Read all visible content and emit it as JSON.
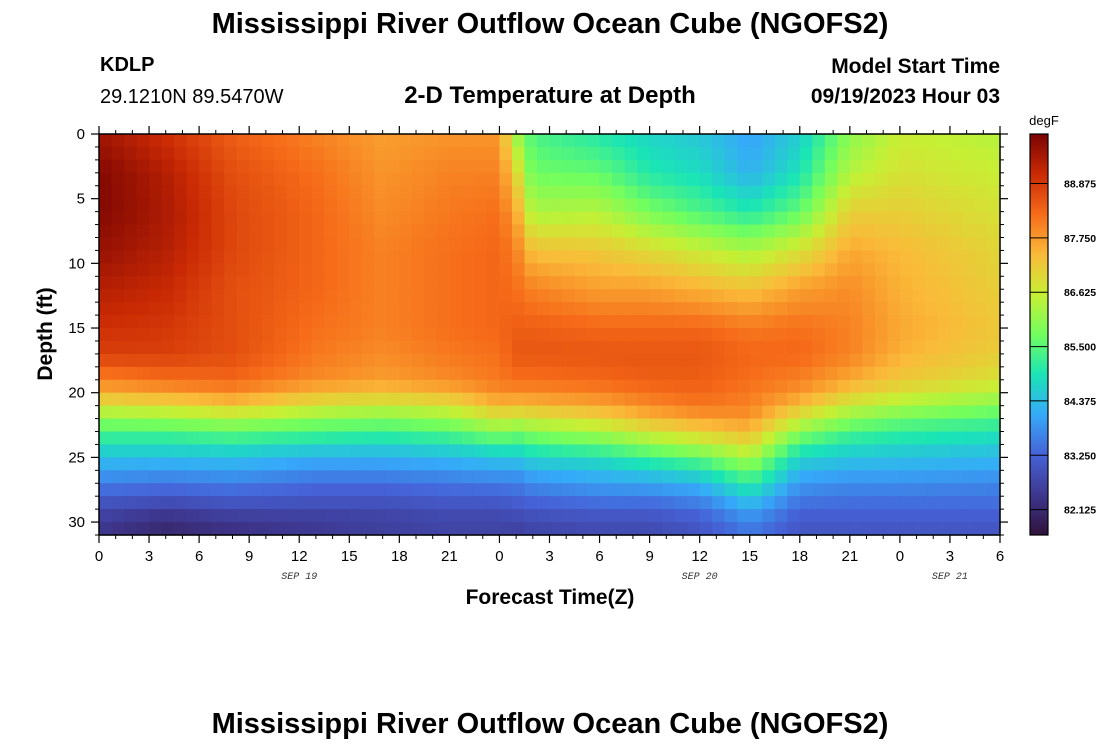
{
  "header": {
    "title": "Mississippi River Outflow Ocean Cube (NGOFS2)",
    "station": "KDLP",
    "coordinates": "29.1210N  89.5470W",
    "subtitle": "2-D Temperature at Depth",
    "start_label": "Model Start Time",
    "start_value": "09/19/2023 Hour 03"
  },
  "footer": {
    "title": "Mississippi River Outflow Ocean Cube (NGOFS2)"
  },
  "chart_data": {
    "type": "heatmap",
    "title": "2-D Temperature at Depth",
    "xlabel": "Forecast Time(Z)",
    "ylabel": "Depth (ft)",
    "x_range_hours": [
      0,
      54
    ],
    "y_range_ft": [
      0,
      31
    ],
    "x_ticks": [
      {
        "hour": 0,
        "label": "0"
      },
      {
        "hour": 3,
        "label": "3"
      },
      {
        "hour": 6,
        "label": "6"
      },
      {
        "hour": 9,
        "label": "9"
      },
      {
        "hour": 12,
        "label": "12"
      },
      {
        "hour": 15,
        "label": "15"
      },
      {
        "hour": 18,
        "label": "18"
      },
      {
        "hour": 21,
        "label": "21"
      },
      {
        "hour": 24,
        "label": "0"
      },
      {
        "hour": 27,
        "label": "3"
      },
      {
        "hour": 30,
        "label": "6"
      },
      {
        "hour": 33,
        "label": "9"
      },
      {
        "hour": 36,
        "label": "12"
      },
      {
        "hour": 39,
        "label": "15"
      },
      {
        "hour": 42,
        "label": "18"
      },
      {
        "hour": 45,
        "label": "21"
      },
      {
        "hour": 48,
        "label": "0"
      },
      {
        "hour": 51,
        "label": "3"
      },
      {
        "hour": 54,
        "label": "6"
      }
    ],
    "date_labels": [
      {
        "hour": 12,
        "label": "SEP 19"
      },
      {
        "hour": 36,
        "label": "SEP 20"
      },
      {
        "hour": 51,
        "label": "SEP 21"
      }
    ],
    "y_ticks": [
      0,
      5,
      10,
      15,
      20,
      25,
      30
    ],
    "colorbar": {
      "unit": "degF",
      "range": [
        81.6,
        89.9
      ],
      "ticks": [
        "88.875",
        "87.750",
        "86.625",
        "85.500",
        "84.375",
        "83.250",
        "82.125"
      ],
      "colors": [
        "#30123b",
        "#3e378f",
        "#4662d7",
        "#36a9f9",
        "#1ae4b6",
        "#72fe5e",
        "#c7ef34",
        "#faba39",
        "#f66b19",
        "#ca2a04",
        "#7a0403"
      ]
    },
    "temperature_profiles": {
      "depth_ft": [
        0,
        3,
        6,
        9,
        12,
        15,
        17,
        19,
        20,
        21,
        22,
        23,
        24,
        25,
        26,
        27,
        28,
        29,
        30,
        31
      ],
      "series": [
        {
          "hour": 0,
          "values": [
            89.5,
            89.8,
            89.8,
            89.6,
            89.3,
            89.0,
            88.8,
            88.0,
            87.5,
            86.8,
            86.0,
            85.4,
            84.9,
            84.4,
            84.0,
            83.6,
            83.2,
            82.8,
            82.5,
            82.4
          ]
        },
        {
          "hour": 4,
          "values": [
            89.0,
            89.3,
            89.4,
            89.3,
            89.1,
            88.9,
            88.8,
            88.2,
            87.7,
            86.9,
            86.1,
            85.4,
            84.9,
            84.4,
            83.9,
            83.5,
            83.1,
            82.6,
            82.2,
            82.1
          ]
        },
        {
          "hour": 8,
          "values": [
            88.4,
            88.6,
            88.7,
            88.7,
            88.6,
            88.6,
            88.6,
            88.3,
            87.9,
            87.2,
            86.3,
            85.6,
            85.0,
            84.4,
            84.0,
            83.6,
            83.2,
            82.8,
            82.4,
            82.3
          ]
        },
        {
          "hour": 13,
          "values": [
            88.0,
            88.2,
            88.3,
            88.3,
            88.3,
            88.2,
            88.1,
            87.9,
            87.4,
            86.8,
            86.0,
            85.4,
            84.8,
            84.2,
            83.8,
            83.4,
            83.1,
            82.8,
            82.5,
            82.5
          ]
        },
        {
          "hour": 17,
          "values": [
            87.7,
            87.8,
            87.9,
            88.0,
            88.0,
            88.0,
            87.9,
            87.7,
            87.3,
            86.6,
            85.9,
            85.3,
            84.7,
            84.2,
            83.8,
            83.4,
            83.1,
            82.8,
            82.6,
            82.6
          ]
        },
        {
          "hour": 21,
          "values": [
            87.8,
            88.0,
            88.1,
            88.2,
            88.2,
            88.2,
            88.1,
            87.9,
            87.5,
            86.8,
            86.1,
            85.5,
            84.9,
            84.3,
            83.9,
            83.5,
            83.2,
            82.9,
            82.7,
            82.7
          ]
        },
        {
          "hour": 24,
          "values": [
            87.8,
            88.0,
            88.2,
            88.3,
            88.3,
            88.3,
            88.2,
            88.1,
            87.9,
            87.4,
            86.7,
            86.0,
            85.2,
            84.5,
            84.0,
            83.6,
            83.2,
            82.9,
            82.7,
            82.7
          ]
        },
        {
          "hour": 25,
          "values": [
            86.2,
            87.0,
            87.6,
            88.0,
            88.2,
            88.4,
            88.5,
            88.2,
            87.9,
            87.3,
            86.6,
            85.8,
            85.1,
            84.5,
            84.0,
            83.6,
            83.3,
            83.0,
            82.7,
            82.6
          ]
        },
        {
          "hour": 26,
          "values": [
            85.4,
            85.7,
            86.3,
            87.3,
            88.0,
            88.4,
            88.5,
            88.2,
            87.9,
            87.4,
            86.7,
            86.0,
            85.3,
            84.7,
            84.2,
            83.8,
            83.4,
            83.1,
            82.8,
            82.7
          ]
        },
        {
          "hour": 30,
          "values": [
            85.0,
            85.6,
            86.4,
            87.2,
            87.7,
            88.3,
            88.5,
            88.3,
            88.0,
            87.6,
            87.0,
            86.3,
            85.6,
            84.9,
            84.4,
            84.0,
            83.6,
            83.2,
            82.9,
            82.8
          ]
        },
        {
          "hour": 33,
          "values": [
            84.7,
            85.0,
            85.8,
            86.9,
            87.7,
            88.3,
            88.5,
            88.4,
            88.2,
            87.9,
            87.4,
            86.8,
            86.0,
            85.3,
            84.6,
            84.1,
            83.6,
            83.2,
            82.9,
            82.8
          ]
        },
        {
          "hour": 36,
          "values": [
            84.5,
            84.8,
            85.4,
            86.6,
            87.5,
            88.3,
            88.5,
            88.4,
            88.3,
            88.1,
            87.7,
            87.1,
            86.4,
            85.6,
            84.9,
            84.3,
            83.8,
            83.4,
            83.1,
            83.0
          ]
        },
        {
          "hour": 39,
          "values": [
            84.0,
            84.2,
            85.0,
            86.3,
            87.3,
            88.1,
            88.3,
            88.2,
            88.1,
            88.0,
            87.8,
            87.4,
            86.9,
            86.3,
            85.7,
            85.2,
            84.6,
            84.1,
            83.7,
            83.5
          ]
        },
        {
          "hour": 42,
          "values": [
            84.6,
            84.9,
            85.6,
            86.8,
            87.7,
            88.2,
            88.3,
            88.0,
            87.8,
            87.3,
            86.7,
            86.0,
            85.3,
            84.7,
            84.3,
            83.9,
            83.6,
            83.3,
            83.1,
            83.0
          ]
        },
        {
          "hour": 45,
          "values": [
            86.0,
            86.4,
            87.1,
            87.6,
            87.9,
            88.0,
            88.0,
            87.6,
            87.2,
            86.6,
            86.0,
            85.4,
            84.9,
            84.5,
            84.1,
            83.8,
            83.5,
            83.3,
            83.1,
            83.0
          ]
        },
        {
          "hour": 48,
          "values": [
            86.6,
            86.8,
            87.1,
            87.4,
            87.5,
            87.6,
            87.5,
            87.2,
            86.8,
            86.3,
            85.7,
            85.2,
            84.8,
            84.4,
            84.1,
            83.8,
            83.5,
            83.3,
            83.1,
            83.0
          ]
        },
        {
          "hour": 54,
          "values": [
            86.4,
            86.6,
            86.8,
            87.0,
            87.1,
            87.2,
            87.1,
            86.8,
            86.4,
            85.9,
            85.4,
            85.0,
            84.6,
            84.3,
            84.0,
            83.7,
            83.5,
            83.3,
            83.1,
            83.0
          ]
        }
      ]
    }
  }
}
